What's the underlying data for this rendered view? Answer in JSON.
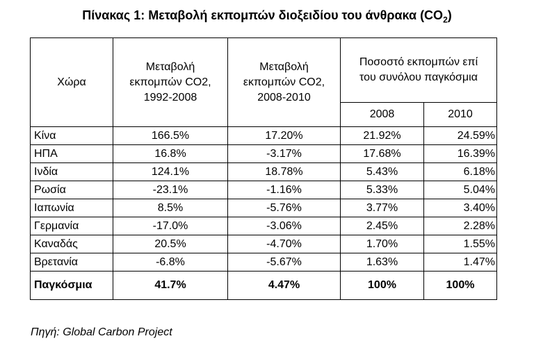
{
  "title": {
    "text": "Πίνακας 1: Μεταβολή εκπομπών διοξειδίου του άνθρακα (CO",
    "subscript": "2",
    "suffix": ")"
  },
  "headers": {
    "country": "Χώρα",
    "change_1992_2008": [
      "Μεταβολή",
      "εκπομπών CO2,",
      "1992-2008"
    ],
    "change_2008_2010": [
      "Μεταβολή",
      "εκπομπών CO2,",
      "2008-2010"
    ],
    "share_global": [
      "Ποσοστό εκπομπών επί",
      "του συνόλου παγκόσμια"
    ],
    "year_2008": "2008",
    "year_2010": "2010"
  },
  "rows": [
    {
      "country": "Κίνα",
      "change_1992_2008": "166.5%",
      "change_2008_2010": "17.20%",
      "share_2008": "21.92%",
      "share_2010": "24.59%"
    },
    {
      "country": "ΗΠΑ",
      "change_1992_2008": "16.8%",
      "change_2008_2010": "-3.17%",
      "share_2008": "17.68%",
      "share_2010": "16.39%"
    },
    {
      "country": "Ινδία",
      "change_1992_2008": "124.1%",
      "change_2008_2010": "18.78%",
      "share_2008": "5.43%",
      "share_2010": "6.18%"
    },
    {
      "country": "Ρωσία",
      "change_1992_2008": "-23.1%",
      "change_2008_2010": "-1.16%",
      "share_2008": "5.33%",
      "share_2010": "5.04%"
    },
    {
      "country": "Ιαπωνία",
      "change_1992_2008": "8.5%",
      "change_2008_2010": "-5.76%",
      "share_2008": "3.77%",
      "share_2010": "3.40%"
    },
    {
      "country": "Γερμανία",
      "change_1992_2008": "-17.0%",
      "change_2008_2010": "-3.06%",
      "share_2008": "2.45%",
      "share_2010": "2.28%"
    },
    {
      "country": "Καναδάς",
      "change_1992_2008": "20.5%",
      "change_2008_2010": "-4.70%",
      "share_2008": "1.70%",
      "share_2010": "1.55%"
    },
    {
      "country": "Βρετανία",
      "change_1992_2008": "-6.8%",
      "change_2008_2010": "-5.67%",
      "share_2008": "1.63%",
      "share_2010": "1.47%"
    }
  ],
  "total": {
    "country": "Παγκόσμια",
    "change_1992_2008": "41.7%",
    "change_2008_2010": "4.47%",
    "share_2008": "100%",
    "share_2010": "100%"
  },
  "source": "Πηγή: Global Carbon Project"
}
